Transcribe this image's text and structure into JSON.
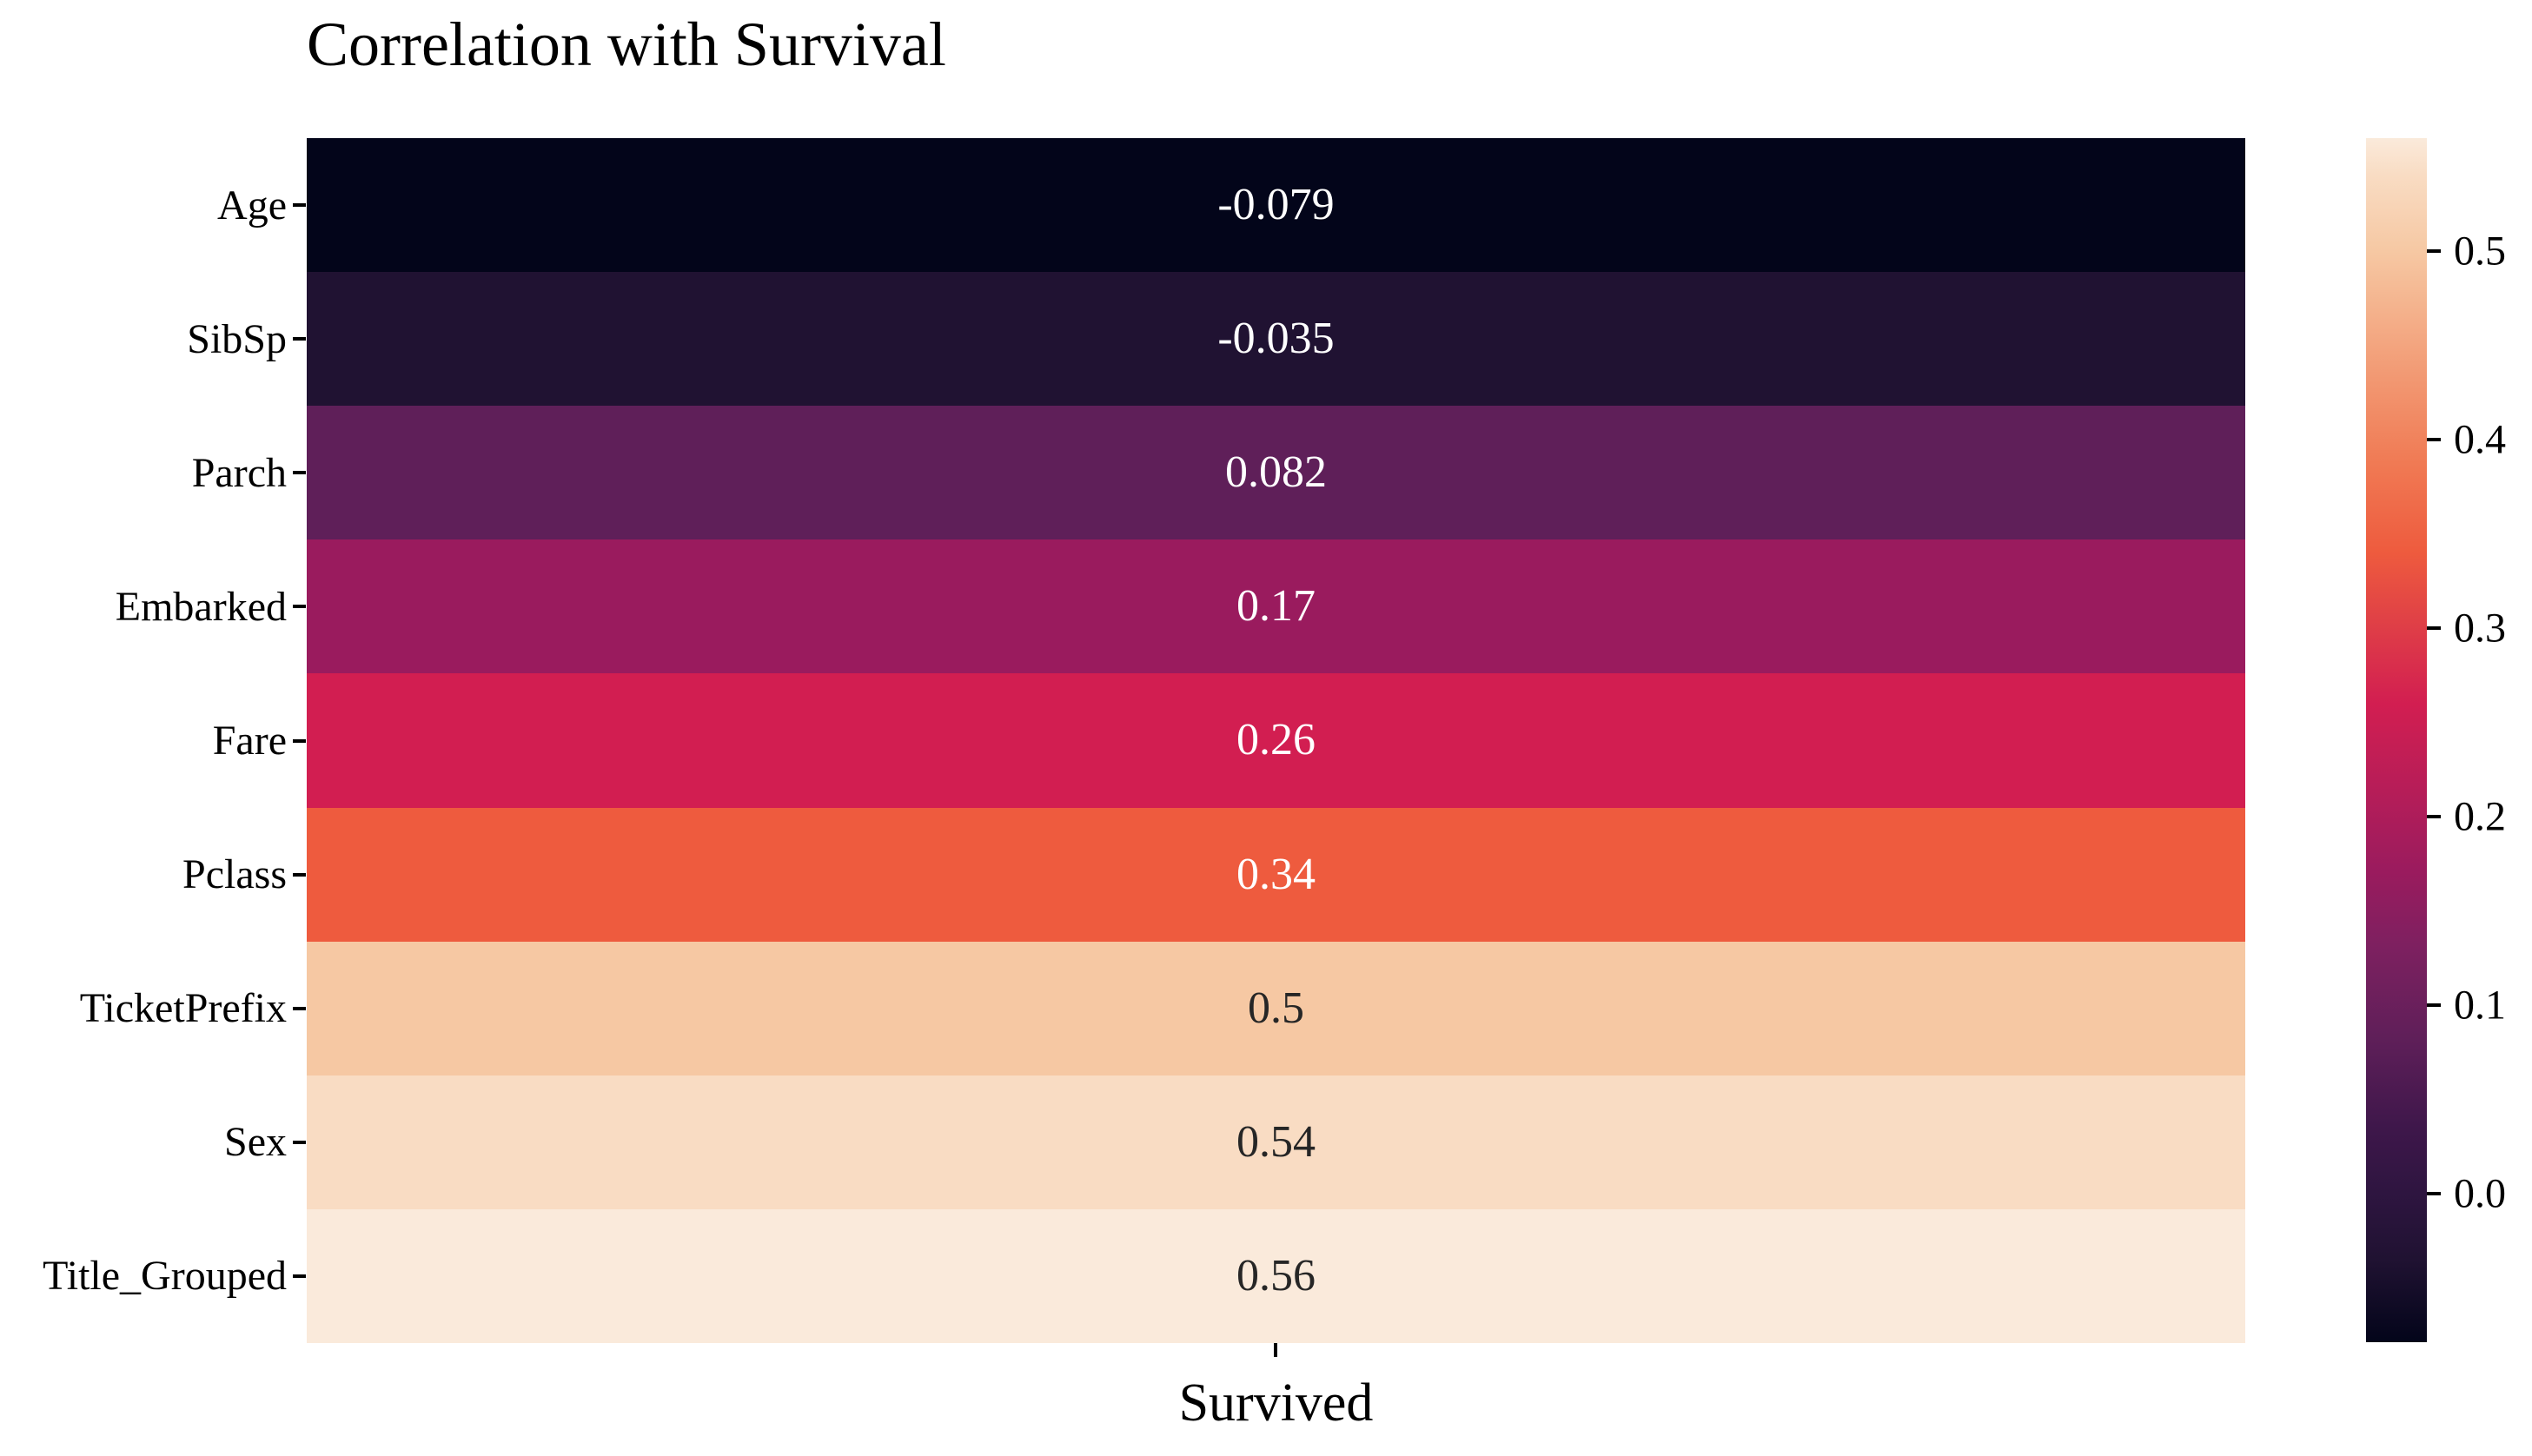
{
  "chart_data": {
    "type": "heatmap",
    "title": "Correlation with Survival",
    "column": "Survived",
    "rows": [
      "Age",
      "SibSp",
      "Parch",
      "Embarked",
      "Fare",
      "Pclass",
      "TicketPrefix",
      "Sex",
      "Title_Grouped"
    ],
    "values": [
      -0.079,
      -0.035,
      0.082,
      0.17,
      0.26,
      0.34,
      0.5,
      0.54,
      0.56
    ],
    "value_labels": [
      "-0.079",
      "-0.035",
      "0.082",
      "0.17",
      "0.26",
      "0.34",
      "0.5",
      "0.54",
      "0.56"
    ],
    "cell_colors": [
      "#03051A",
      "#201232",
      "#5F1F59",
      "#9A1B5E",
      "#D21E51",
      "#EE5B3E",
      "#F6C8A3",
      "#F9DCC3",
      "#FAEADB"
    ],
    "text_colors": [
      "#ffffff",
      "#ffffff",
      "#ffffff",
      "#ffffff",
      "#ffffff",
      "#ffffff",
      "#262626",
      "#262626",
      "#262626"
    ],
    "grid": false,
    "background": "#ffffff",
    "colorbar": {
      "colormap": "rocket",
      "vmin": -0.079,
      "vmax": 0.56,
      "ticks": [
        0.0,
        0.1,
        0.2,
        0.3,
        0.4,
        0.5
      ],
      "tick_labels": [
        "0.0",
        "0.1",
        "0.2",
        "0.3",
        "0.4",
        "0.5"
      ],
      "gradient_stops": [
        {
          "p": 0,
          "c": "#03051A"
        },
        {
          "p": 6.9,
          "c": "#201232"
        },
        {
          "p": 12.4,
          "c": "#2E1540"
        },
        {
          "p": 18,
          "c": "#3F174B"
        },
        {
          "p": 25.2,
          "c": "#5F1F59"
        },
        {
          "p": 33,
          "c": "#7E2060"
        },
        {
          "p": 39,
          "c": "#9A1B5E"
        },
        {
          "p": 45,
          "c": "#B31D59"
        },
        {
          "p": 53,
          "c": "#D21E51"
        },
        {
          "p": 60,
          "c": "#E04146"
        },
        {
          "p": 65.6,
          "c": "#EE5B3E"
        },
        {
          "p": 73,
          "c": "#F07A54"
        },
        {
          "p": 80,
          "c": "#F29872"
        },
        {
          "p": 90.6,
          "c": "#F6C8A3"
        },
        {
          "p": 96.9,
          "c": "#F9DCC3"
        },
        {
          "p": 100,
          "c": "#FAEADB"
        }
      ]
    }
  }
}
